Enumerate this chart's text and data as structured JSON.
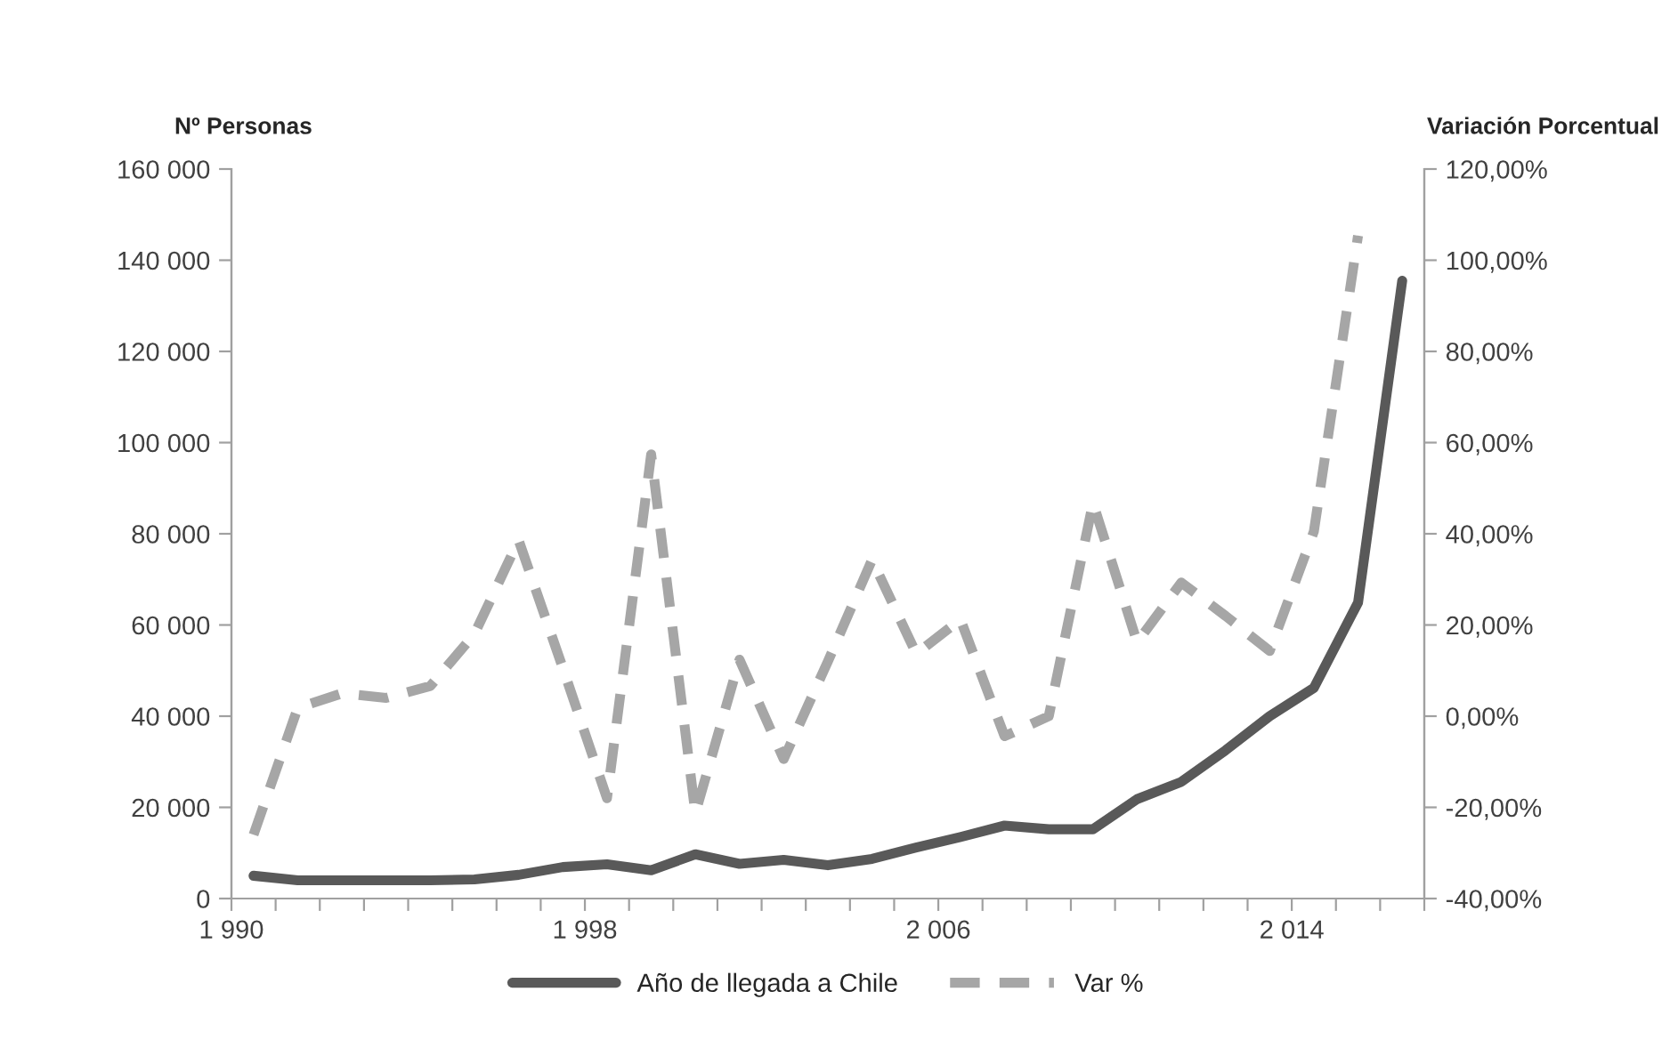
{
  "chart_data": {
    "type": "line",
    "ylabel": "Nº Personas",
    "y2label": "Variación Porcentual",
    "x": [
      1990.5,
      1991.5,
      1992.5,
      1993.5,
      1994.5,
      1995.5,
      1996.5,
      1997.5,
      1998.5,
      1999.5,
      2000.5,
      2001.5,
      2002.5,
      2003.5,
      2004.5,
      2005.5,
      2006.5,
      2007.5,
      2008.5,
      2009.5,
      2010.5,
      2011.5,
      2012.5,
      2013.5,
      2014.5,
      2015.5,
      2016.5
    ],
    "series": [
      {
        "name": "Año de llegada a Chile",
        "color": "#595959",
        "line_style": "solid",
        "values": [
          5000,
          4000,
          4000,
          4000,
          4000,
          4200,
          5200,
          6900,
          7500,
          6200,
          9700,
          7600,
          8500,
          7300,
          8700,
          11200,
          13500,
          16000,
          15200,
          15200,
          21800,
          25600,
          32500,
          40000,
          46200,
          64900,
          135500
        ]
      },
      {
        "name": "Var %",
        "color": "#a6a6a6",
        "line_style": "dashed",
        "axis": "y2",
        "values": [
          -26,
          1.8,
          5,
          4,
          6.6,
          18,
          38.6,
          10.6,
          -18,
          57.4,
          -21.3,
          12.4,
          -9.4,
          12,
          34.3,
          13.7,
          21.2,
          -4.4,
          0,
          46.8,
          16.2,
          29.3,
          22,
          14.3,
          40.5,
          105.4,
          null
        ]
      }
    ],
    "xlim": [
      1990,
      2017
    ],
    "xticks": [
      {
        "value": 1990,
        "label": "1 990"
      },
      {
        "value": 1991,
        "label": null
      },
      {
        "value": 1992,
        "label": null
      },
      {
        "value": 1993,
        "label": null
      },
      {
        "value": 1994,
        "label": null
      },
      {
        "value": 1995,
        "label": null
      },
      {
        "value": 1996,
        "label": null
      },
      {
        "value": 1997,
        "label": null
      },
      {
        "value": 1998,
        "label": "1 998"
      },
      {
        "value": 1999,
        "label": null
      },
      {
        "value": 2000,
        "label": null
      },
      {
        "value": 2001,
        "label": null
      },
      {
        "value": 2002,
        "label": null
      },
      {
        "value": 2003,
        "label": null
      },
      {
        "value": 2004,
        "label": null
      },
      {
        "value": 2005,
        "label": null
      },
      {
        "value": 2006,
        "label": "2 006"
      },
      {
        "value": 2007,
        "label": null
      },
      {
        "value": 2008,
        "label": null
      },
      {
        "value": 2009,
        "label": null
      },
      {
        "value": 2010,
        "label": null
      },
      {
        "value": 2011,
        "label": null
      },
      {
        "value": 2012,
        "label": null
      },
      {
        "value": 2013,
        "label": null
      },
      {
        "value": 2014,
        "label": "2 014"
      },
      {
        "value": 2015,
        "label": null
      },
      {
        "value": 2016,
        "label": null
      },
      {
        "value": 2017,
        "label": null
      }
    ],
    "ylim": [
      0,
      160000
    ],
    "yticks": [
      {
        "value": 0,
        "label": "0"
      },
      {
        "value": 20000,
        "label": "20 000"
      },
      {
        "value": 40000,
        "label": "40 000"
      },
      {
        "value": 60000,
        "label": "60 000"
      },
      {
        "value": 80000,
        "label": "80 000"
      },
      {
        "value": 100000,
        "label": "100 000"
      },
      {
        "value": 120000,
        "label": "120 000"
      },
      {
        "value": 140000,
        "label": "140 000"
      },
      {
        "value": 160000,
        "label": "160 000"
      }
    ],
    "y2lim": [
      -40,
      120
    ],
    "y2ticks": [
      {
        "value": -40,
        "label": "-40,00%"
      },
      {
        "value": -20,
        "label": "-20,00%"
      },
      {
        "value": 0,
        "label": "0,00%"
      },
      {
        "value": 20,
        "label": "20,00%"
      },
      {
        "value": 40,
        "label": "40,00%"
      },
      {
        "value": 60,
        "label": "60,00%"
      },
      {
        "value": 80,
        "label": "80,00%"
      },
      {
        "value": 100,
        "label": "100,00%"
      },
      {
        "value": 120,
        "label": "120,00%"
      }
    ],
    "grid": false,
    "legend": "bottom",
    "marker": "none"
  }
}
